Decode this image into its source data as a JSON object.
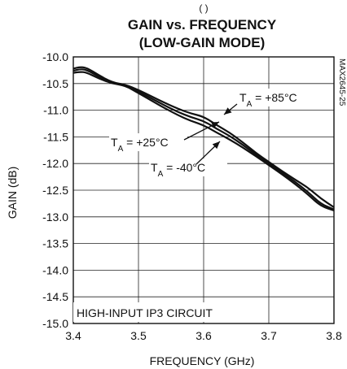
{
  "chart_data": {
    "type": "line",
    "title": "GAIN vs. FREQUENCY",
    "subtitle": "(LOW-GAIN MODE)",
    "xlabel": "FREQUENCY (GHz)",
    "ylabel": "GAIN (dB)",
    "xlim": [
      3.4,
      3.8
    ],
    "ylim": [
      -15.0,
      -10.0
    ],
    "x_ticks": [
      3.4,
      3.5,
      3.6,
      3.7,
      3.8
    ],
    "x_tick_labels": [
      "3.4",
      "3.5",
      "3.6",
      "3.7",
      "3.8"
    ],
    "y_ticks": [
      -10.0,
      -10.5,
      -11.0,
      -11.5,
      -12.0,
      -12.5,
      -13.0,
      -13.5,
      -14.0,
      -14.5,
      -15.0
    ],
    "y_tick_labels": [
      "-10.0",
      "-10.5",
      "-11.0",
      "-11.5",
      "-12.0",
      "-12.5",
      "-13.0",
      "-13.5",
      "-14.0",
      "-14.5",
      "-15.0"
    ],
    "grid": true,
    "series": [
      {
        "x": [
          3.4,
          3.41,
          3.42,
          3.44,
          3.46,
          3.48,
          3.5,
          3.52,
          3.54,
          3.56,
          3.58,
          3.6,
          3.62,
          3.64,
          3.66,
          3.68,
          3.7,
          3.72,
          3.74,
          3.76,
          3.78,
          3.8
        ],
        "y": [
          -10.22,
          -10.19,
          -10.2,
          -10.35,
          -10.48,
          -10.52,
          -10.62,
          -10.74,
          -10.86,
          -10.97,
          -11.06,
          -11.12,
          -11.28,
          -11.42,
          -11.6,
          -11.8,
          -11.97,
          -12.14,
          -12.3,
          -12.45,
          -12.66,
          -12.82
        ]
      },
      {
        "x": [
          3.4,
          3.41,
          3.42,
          3.44,
          3.46,
          3.48,
          3.5,
          3.52,
          3.54,
          3.56,
          3.58,
          3.6,
          3.62,
          3.64,
          3.66,
          3.68,
          3.7,
          3.72,
          3.74,
          3.76,
          3.78,
          3.8
        ],
        "y": [
          -10.26,
          -10.23,
          -10.24,
          -10.38,
          -10.49,
          -10.53,
          -10.65,
          -10.78,
          -10.91,
          -11.03,
          -11.13,
          -11.2,
          -11.35,
          -11.48,
          -11.65,
          -11.83,
          -12.0,
          -12.17,
          -12.34,
          -12.53,
          -12.76,
          -12.86
        ]
      },
      {
        "x": [
          3.4,
          3.41,
          3.42,
          3.44,
          3.46,
          3.48,
          3.5,
          3.52,
          3.54,
          3.56,
          3.58,
          3.6,
          3.62,
          3.64,
          3.66,
          3.68,
          3.7,
          3.72,
          3.74,
          3.76,
          3.78,
          3.8
        ],
        "y": [
          -10.3,
          -10.28,
          -10.29,
          -10.41,
          -10.5,
          -10.54,
          -10.68,
          -10.82,
          -10.96,
          -11.09,
          -11.2,
          -11.28,
          -11.42,
          -11.55,
          -11.7,
          -11.86,
          -12.03,
          -12.2,
          -12.38,
          -12.58,
          -12.8,
          -12.88
        ]
      }
    ],
    "annotations": [
      {
        "label": "T",
        "sub": "A",
        "value": " = +85°C"
      },
      {
        "label": "T",
        "sub": "A",
        "value": " = +25°C"
      },
      {
        "label": "T",
        "sub": "A",
        "value": " = -40°C"
      }
    ],
    "inset_label": "HIGH-INPUT IP3 CIRCUIT",
    "figure_code": "MAX2645-25",
    "top_partial_text": "(  )",
    "colors": {
      "line": "#111111",
      "grid": "#222222",
      "frame": "#111111"
    }
  }
}
